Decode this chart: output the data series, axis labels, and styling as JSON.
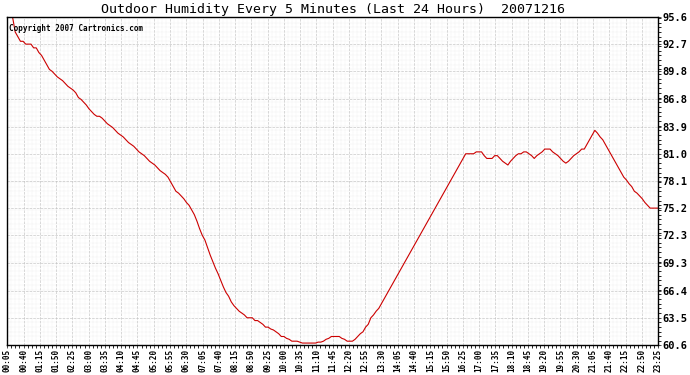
{
  "title": "Outdoor Humidity Every 5 Minutes (Last 24 Hours)  20071216",
  "copyright_text": "Copyright 2007 Cartronics.com",
  "line_color": "#cc0000",
  "background_color": "#ffffff",
  "grid_color": "#bbbbbb",
  "yticks": [
    60.6,
    63.5,
    66.4,
    69.3,
    72.3,
    75.2,
    78.1,
    81.0,
    83.9,
    86.8,
    89.8,
    92.7,
    95.6
  ],
  "ylim": [
    60.6,
    95.6
  ],
  "xtick_labels": [
    "00:05",
    "00:40",
    "01:15",
    "01:50",
    "02:25",
    "03:00",
    "03:35",
    "04:10",
    "04:45",
    "05:20",
    "05:55",
    "06:30",
    "07:05",
    "07:40",
    "08:15",
    "08:50",
    "09:25",
    "10:00",
    "10:35",
    "11:10",
    "11:45",
    "12:20",
    "12:55",
    "13:30",
    "14:05",
    "14:40",
    "15:15",
    "15:50",
    "16:25",
    "17:00",
    "17:35",
    "18:10",
    "18:45",
    "19:20",
    "19:55",
    "20:30",
    "21:05",
    "21:40",
    "22:15",
    "22:50",
    "23:25"
  ],
  "humidity_values": [
    95.6,
    95.6,
    95.6,
    94.0,
    93.5,
    93.0,
    93.0,
    92.7,
    92.7,
    92.7,
    92.3,
    92.3,
    91.8,
    91.5,
    91.0,
    90.5,
    90.0,
    89.8,
    89.5,
    89.2,
    89.0,
    88.8,
    88.5,
    88.2,
    88.0,
    87.8,
    87.5,
    87.0,
    86.8,
    86.5,
    86.2,
    85.8,
    85.5,
    85.2,
    85.0,
    85.0,
    84.8,
    84.5,
    84.2,
    84.0,
    83.8,
    83.5,
    83.2,
    83.0,
    82.8,
    82.5,
    82.2,
    82.0,
    81.8,
    81.5,
    81.2,
    81.0,
    80.8,
    80.5,
    80.2,
    80.0,
    79.8,
    79.5,
    79.2,
    79.0,
    78.8,
    78.5,
    78.0,
    77.5,
    77.0,
    76.8,
    76.5,
    76.2,
    75.8,
    75.5,
    75.0,
    74.5,
    73.8,
    73.0,
    72.3,
    71.8,
    71.0,
    70.2,
    69.5,
    68.8,
    68.2,
    67.5,
    66.8,
    66.2,
    65.8,
    65.2,
    64.8,
    64.5,
    64.2,
    64.0,
    63.8,
    63.5,
    63.5,
    63.5,
    63.2,
    63.2,
    63.0,
    62.8,
    62.5,
    62.5,
    62.3,
    62.2,
    62.0,
    61.8,
    61.5,
    61.5,
    61.3,
    61.2,
    61.0,
    61.0,
    61.0,
    60.9,
    60.8,
    60.8,
    60.8,
    60.8,
    60.8,
    60.8,
    60.9,
    60.9,
    61.0,
    61.2,
    61.3,
    61.5,
    61.5,
    61.5,
    61.5,
    61.3,
    61.2,
    61.0,
    61.0,
    61.0,
    61.2,
    61.5,
    61.8,
    62.0,
    62.5,
    62.8,
    63.5,
    63.8,
    64.2,
    64.5,
    65.0,
    65.5,
    66.0,
    66.5,
    67.0,
    67.5,
    68.0,
    68.5,
    69.0,
    69.5,
    70.0,
    70.5,
    71.0,
    71.5,
    72.0,
    72.5,
    73.0,
    73.5,
    74.0,
    74.5,
    75.0,
    75.5,
    76.0,
    76.5,
    77.0,
    77.5,
    78.0,
    78.5,
    79.0,
    79.5,
    80.0,
    80.5,
    81.0,
    81.0,
    81.0,
    81.0,
    81.2,
    81.2,
    81.2,
    80.8,
    80.5,
    80.5,
    80.5,
    80.8,
    80.8,
    80.5,
    80.2,
    80.0,
    79.8,
    80.2,
    80.5,
    80.8,
    81.0,
    81.0,
    81.2,
    81.2,
    81.0,
    80.8,
    80.5,
    80.8,
    81.0,
    81.2,
    81.5,
    81.5,
    81.5,
    81.2,
    81.0,
    80.8,
    80.5,
    80.2,
    80.0,
    80.2,
    80.5,
    80.8,
    81.0,
    81.2,
    81.5,
    81.5,
    82.0,
    82.5,
    83.0,
    83.5,
    83.2,
    82.8,
    82.5,
    82.0,
    81.5,
    81.0,
    80.5,
    80.0,
    79.5,
    79.0,
    78.5,
    78.2,
    77.8,
    77.5,
    77.0,
    76.8,
    76.5,
    76.2,
    75.8,
    75.5,
    75.2,
    75.2,
    75.2,
    75.2
  ]
}
